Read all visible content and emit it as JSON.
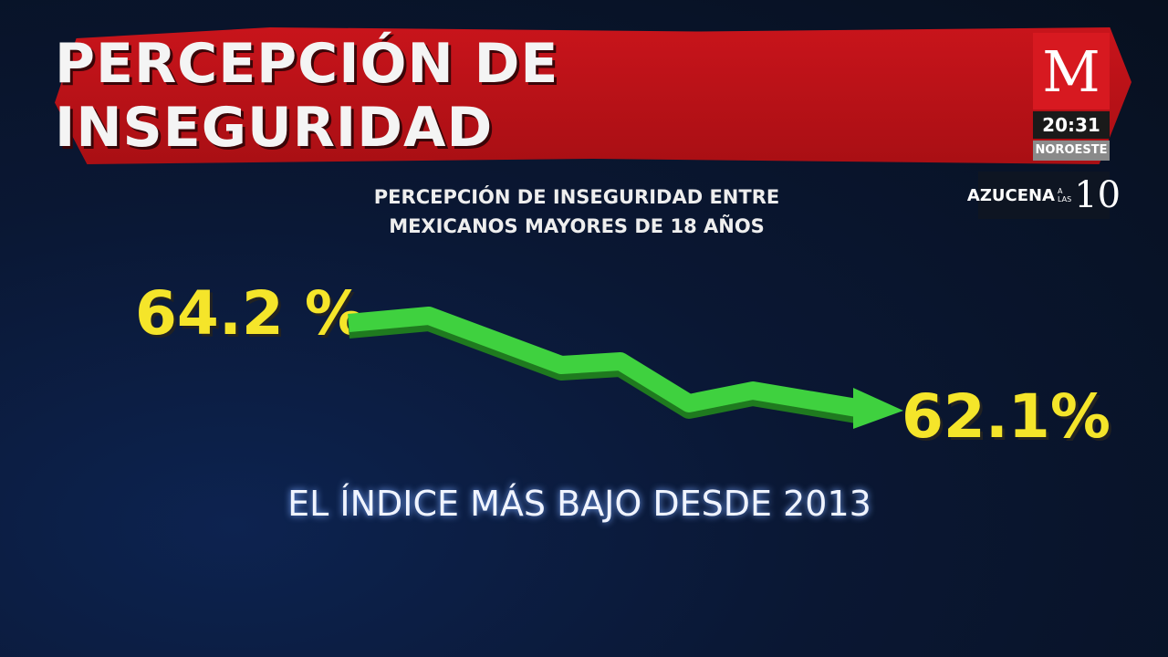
{
  "header": {
    "title": "PERCEPCIÓN DE INSEGURIDAD"
  },
  "subtitle": {
    "line1": "PERCEPCIÓN DE INSEGURIDAD ENTRE",
    "line2": "MEXICANOS MAYORES DE 18 AÑOS"
  },
  "start_value": "64.2 %",
  "end_value": "62.1%",
  "caption": "EL ÍNDICE MÁS BAJO DESDE 2013",
  "channel": {
    "logo": "M",
    "time": "20:31",
    "region": "NOROESTE"
  },
  "program": {
    "name": "AZUCENA",
    "small": "A LAS",
    "number": "10"
  }
}
